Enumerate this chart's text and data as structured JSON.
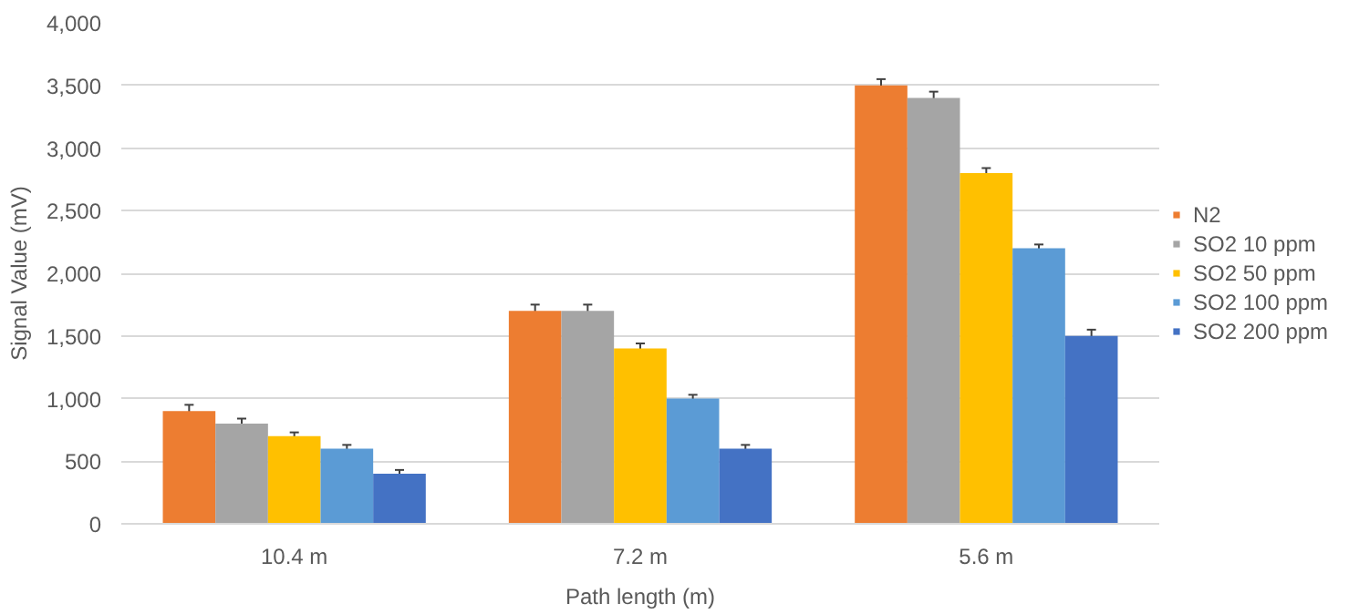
{
  "chart_data": {
    "type": "bar",
    "xlabel": "Path length (m)",
    "ylabel": "Signal Value (mV)",
    "categories": [
      "10.4 m",
      "7.2 m",
      "5.6 m"
    ],
    "series": [
      {
        "name": "N2",
        "color": "#ed7d31",
        "values": [
          900,
          1700,
          3500
        ],
        "errors": [
          50,
          50,
          50
        ]
      },
      {
        "name": "SO2 10 ppm",
        "color": "#a5a5a5",
        "values": [
          800,
          1700,
          3400
        ],
        "errors": [
          40,
          50,
          50
        ]
      },
      {
        "name": "SO2 50 ppm",
        "color": "#ffc000",
        "values": [
          700,
          1400,
          2800
        ],
        "errors": [
          30,
          40,
          40
        ]
      },
      {
        "name": "SO2 100 ppm",
        "color": "#5b9bd5",
        "values": [
          600,
          1000,
          2200
        ],
        "errors": [
          30,
          30,
          30
        ]
      },
      {
        "name": "SO2 200 ppm",
        "color": "#4472c4",
        "values": [
          400,
          600,
          1500
        ],
        "errors": [
          30,
          30,
          50
        ]
      }
    ],
    "ylim": [
      0,
      4000
    ],
    "yticks": [
      {
        "value": 0,
        "label": "0"
      },
      {
        "value": 500,
        "label": "500"
      },
      {
        "value": 1000,
        "label": "1,000"
      },
      {
        "value": 1500,
        "label": "1,500"
      },
      {
        "value": 2000,
        "label": "2,000"
      },
      {
        "value": 2500,
        "label": "2,500"
      },
      {
        "value": 3000,
        "label": "3,000"
      },
      {
        "value": 3500,
        "label": "3,500"
      },
      {
        "value": 4000,
        "label": "4,000"
      }
    ],
    "grid": "y",
    "legend": "right"
  }
}
